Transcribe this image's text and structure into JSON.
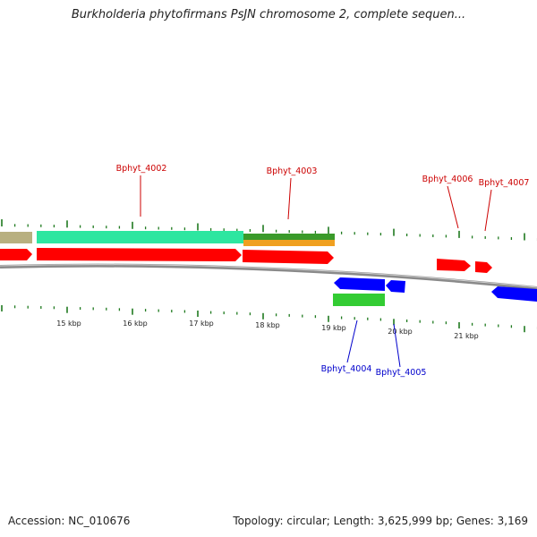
{
  "title": "Burkholderia phytofirmans PsJN chromosome 2, complete sequen...",
  "footer": {
    "accession": "Accession: NC_010676",
    "summary": "Topology: circular; Length: 3,625,999 bp; Genes: 3,169"
  },
  "colors": {
    "backbone": "#8a8a8a",
    "ticks": "#1f7a1f",
    "cds": "#ff0000",
    "gene_forward": "#ff0000",
    "gene_reverse": "#0000ff",
    "cds_reverse": "#33cc33",
    "feature_teal": "#2de6a0",
    "feature_tan": "#b8b080",
    "feature_green": "#3a9a2a",
    "feature_orange": "#f0a020",
    "label_forward": "#cc0000",
    "label_reverse": "#0000cc"
  },
  "scale_labels": [
    "15 kbp",
    "16 kbp",
    "17 kbp",
    "18 kbp",
    "19 kbp",
    "20 kbp",
    "21 kbp"
  ],
  "gene_labels": [
    {
      "text": "Bphyt_4002",
      "strand": "forward"
    },
    {
      "text": "Bphyt_4003",
      "strand": "forward"
    },
    {
      "text": "Bphyt_4006",
      "strand": "forward"
    },
    {
      "text": "Bphyt_4007",
      "strand": "forward"
    },
    {
      "text": "Bphyt_4004",
      "strand": "reverse"
    },
    {
      "text": "Bphyt_4005",
      "strand": "reverse"
    }
  ]
}
